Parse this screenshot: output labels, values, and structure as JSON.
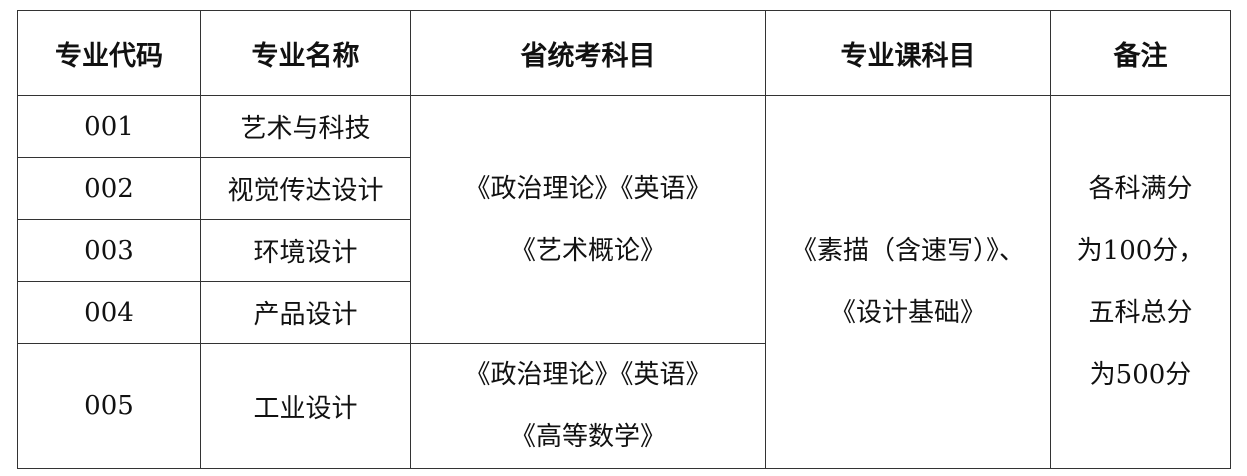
{
  "headers": [
    "专业代码",
    "专业名称",
    "省统考科目",
    "专业课科目",
    "备注"
  ],
  "rows": [
    {
      "code": "001",
      "name": "艺术与科技"
    },
    {
      "code": "002",
      "name": "视觉传达设计"
    },
    {
      "code": "003",
      "name": "环境设计"
    },
    {
      "code": "004",
      "name": "产品设计"
    },
    {
      "code": "005",
      "name": "工业设计"
    }
  ],
  "exam_group_1": [
    "《政治理论》《英语》",
    "《艺术概论》"
  ],
  "exam_group_2": [
    "《政治理论》《英语》",
    "《高等数学》"
  ],
  "major_subjects": [
    "《素描（含速写）》、",
    "《设计基础》"
  ],
  "remarks": [
    "各科满分",
    "为100分，",
    "五科总分",
    "为500分"
  ]
}
